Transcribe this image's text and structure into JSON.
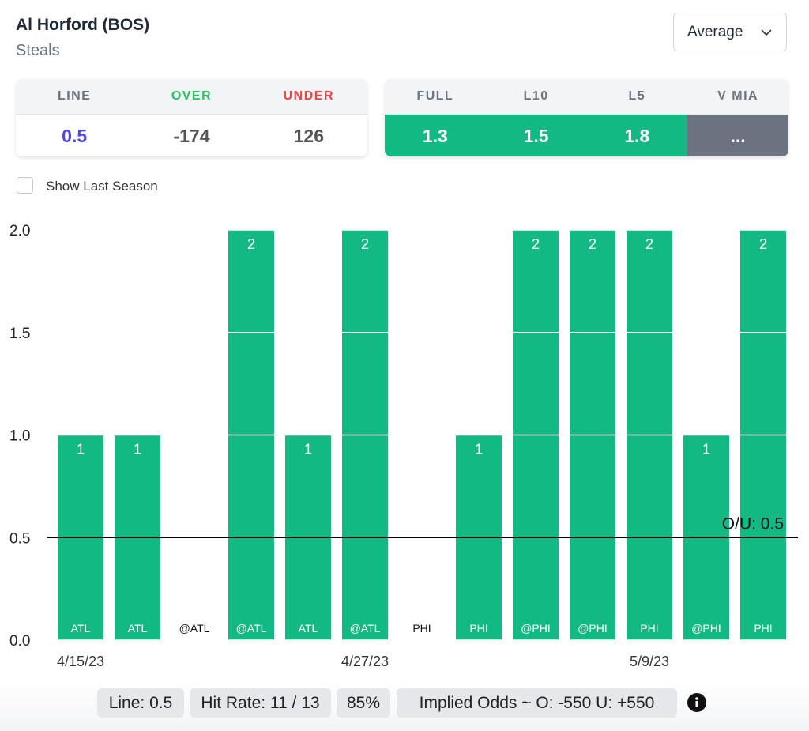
{
  "header": {
    "player": "Al Horford (BOS)",
    "stat": "Steals",
    "dropdown": "Average"
  },
  "odds": {
    "headers": [
      "LINE",
      "OVER",
      "UNDER"
    ],
    "values": [
      "0.5",
      "-174",
      "126"
    ]
  },
  "averages": {
    "headers": [
      "FULL",
      "L10",
      "L5",
      "V MIA"
    ],
    "values": [
      "1.3",
      "1.5",
      "1.8",
      "..."
    ]
  },
  "checkbox_label": "Show Last Season",
  "chart_data": {
    "type": "bar",
    "categories": [
      "ATL",
      "ATL",
      "@ATL",
      "@ATL",
      "ATL",
      "@ATL",
      "PHI",
      "PHI",
      "@PHI",
      "@PHI",
      "PHI",
      "@PHI",
      "PHI"
    ],
    "dates": [
      "4/15/23",
      null,
      null,
      null,
      null,
      "4/27/23",
      null,
      null,
      null,
      null,
      "5/9/23",
      null,
      null
    ],
    "values": [
      1,
      1,
      0,
      2,
      1,
      2,
      0,
      1,
      2,
      2,
      2,
      1,
      2
    ],
    "color": "#13b982",
    "ylim": [
      0,
      2
    ],
    "yticks": [
      {
        "value": 0,
        "label": "0.0"
      },
      {
        "value": 0.5,
        "label": "0.5"
      },
      {
        "value": 1,
        "label": "1.0"
      },
      {
        "value": 1.5,
        "label": "1.5"
      },
      {
        "value": 2,
        "label": "2.0"
      }
    ],
    "grid": true,
    "reference_line": {
      "value": 0.5,
      "label": "O/U: 0.5"
    }
  },
  "footer": [
    "Line: 0.5",
    "Hit Rate: 11 / 13",
    "85%",
    "Implied Odds ~ O: -550 U: +550"
  ]
}
